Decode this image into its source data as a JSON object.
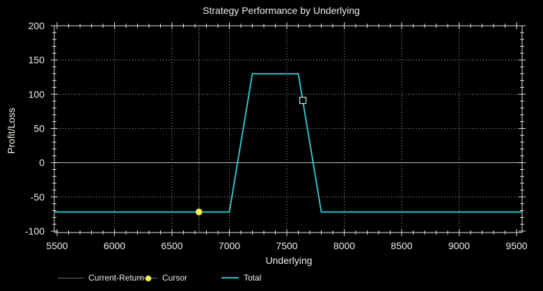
{
  "title": "Strategy Performance by Underlying",
  "colors": {
    "background": "#000000",
    "axis": "#e6e6da",
    "grid": "#b4b4aa",
    "zero_line": "#c9c9c9",
    "text": "#f0efe2",
    "total_line": "#2fc1c6",
    "current_return": "#dcdcb8",
    "cursor": "#f3f35c",
    "cursor_edge": "#bdbd3e",
    "marker_stroke": "#cfe9ea"
  },
  "chart_data": {
    "type": "line",
    "title": "Strategy Performance by Underlying",
    "xlabel": "Underlying",
    "ylabel": "Profit/Loss",
    "xlim": [
      5500,
      9500
    ],
    "ylim": [
      -100,
      200
    ],
    "x_ticks": [
      5500,
      6000,
      6500,
      7000,
      7500,
      8000,
      8500,
      9000,
      9500
    ],
    "y_ticks": [
      200,
      150,
      100,
      50,
      0,
      -50,
      -100
    ],
    "x_minor_step": 100,
    "y_minor_step": 10,
    "grid": "dotted at major ticks, solid line at zero",
    "legend_position": "bottom",
    "series": [
      {
        "name": "Total",
        "color": "#2fc1c6",
        "points": [
          [
            5500,
            -72
          ],
          [
            7000,
            -72
          ],
          [
            7200,
            130
          ],
          [
            7600,
            130
          ],
          [
            7800,
            -72
          ],
          [
            9500,
            -72
          ]
        ]
      }
    ],
    "annotations": {
      "current_return_x": 6735,
      "cursor_point": [
        6735,
        -72
      ],
      "selected_marker": [
        7640,
        91
      ]
    },
    "legend": [
      {
        "label": "Current-Return",
        "style": "dotted-line"
      },
      {
        "label": "Cursor",
        "style": "dotted-line-with-dot"
      },
      {
        "label": "Total",
        "style": "solid-line"
      }
    ]
  }
}
